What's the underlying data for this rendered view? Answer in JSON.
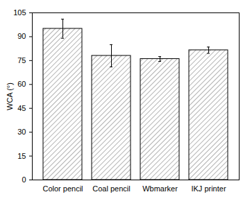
{
  "chart_data": {
    "type": "bar",
    "categories": [
      "Color pencil",
      "Coal pencil",
      "Wbmarker",
      "IKJ printer"
    ],
    "values": [
      95,
      78,
      76,
      81.5
    ],
    "errors": [
      6,
      7,
      1.5,
      2
    ],
    "color": "#7f7f7f",
    "y_label": "WCA (°)",
    "ylim": [
      0,
      105
    ],
    "yticks": [
      0,
      15,
      30,
      45,
      60,
      75,
      90,
      105
    ],
    "grid": false
  }
}
